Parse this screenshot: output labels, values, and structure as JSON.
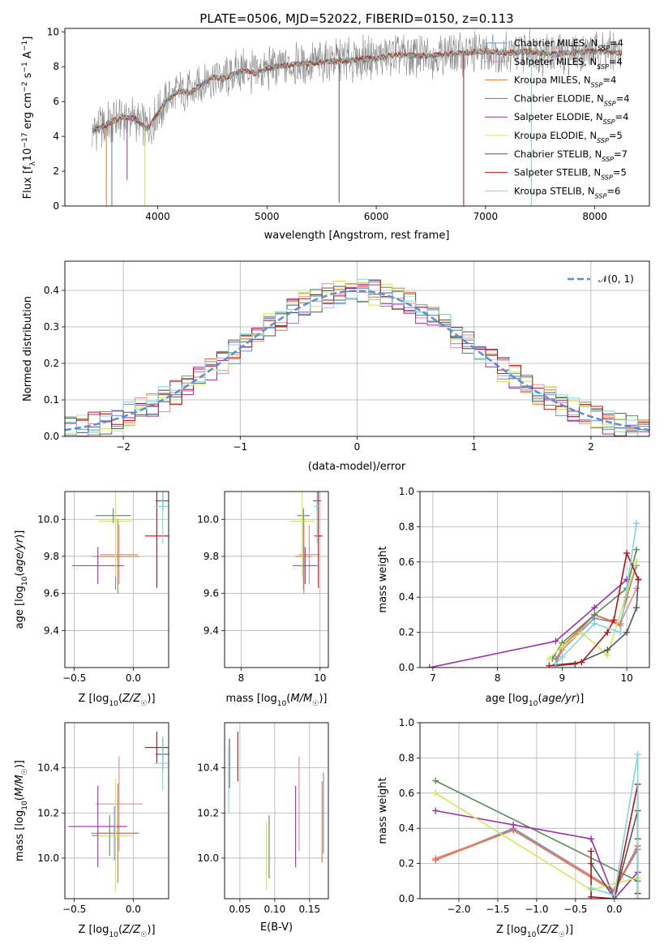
{
  "figure_title": "PLATE=0506, MJD=52022, FIBERID=0150, z=0.113",
  "colors": {
    "chabrier_miles": "#6a8fd8",
    "salpeter_miles": "#e8899b",
    "kroupa_miles": "#e2743a",
    "chabrier_elodie": "#5b8a5b",
    "salpeter_elodie": "#9b2fae",
    "kroupa_elodie": "#cfe85a",
    "chabrier_stelib": "#555555",
    "salpeter_stelib": "#b3141a",
    "kroupa_stelib": "#7fd6dc",
    "data": "#888888",
    "normal": "#5a8fd8",
    "grid": "#b0b0b0"
  },
  "chart_data": [
    {
      "type": "line",
      "title": "PLATE=0506, MJD=52022, FIBERID=0150, z=0.113",
      "xlabel": "wavelength [Angstrom, rest frame]",
      "ylabel": "Flux [f_λ 10^-17 erg cm^-2 s^-1 A^-1]",
      "xlim": [
        3150,
        8500
      ],
      "ylim": [
        0,
        10.2
      ],
      "xticks": [
        "4000",
        "5000",
        "6000",
        "7000",
        "8000"
      ],
      "yticks": [
        "0",
        "2",
        "4",
        "6",
        "8",
        "10"
      ],
      "legend": "upper right",
      "x": [
        3400,
        3500,
        3600,
        3700,
        3800,
        3900,
        4000,
        4100,
        4200,
        4300,
        4400,
        4500,
        4600,
        4700,
        4800,
        4900,
        5000,
        5200,
        5400,
        5600,
        5800,
        6000,
        6200,
        6400,
        6600,
        6800,
        7000,
        7200,
        7400,
        7600,
        7800,
        8000,
        8250
      ],
      "series_flux": [
        4.3,
        4.6,
        4.9,
        5.1,
        5.0,
        4.4,
        5.3,
        6.2,
        6.6,
        6.5,
        7.0,
        7.4,
        7.3,
        7.6,
        7.8,
        7.6,
        7.9,
        8.1,
        8.2,
        8.3,
        8.4,
        8.5,
        8.7,
        8.6,
        8.7,
        8.8,
        8.9,
        8.8,
        8.9,
        8.7,
        8.8,
        8.9,
        8.8
      ],
      "series": [
        {
          "name": "Chabrier MILES",
          "n_ssp": "4"
        },
        {
          "name": "Salpeter MILES",
          "n_ssp": "4"
        },
        {
          "name": "Kroupa MILES",
          "n_ssp": "4"
        },
        {
          "name": "Chabrier ELODIE",
          "n_ssp": "4"
        },
        {
          "name": "Salpeter ELODIE",
          "n_ssp": "4"
        },
        {
          "name": "Kroupa ELODIE",
          "n_ssp": "5"
        },
        {
          "name": "Chabrier STELIB",
          "n_ssp": "7"
        },
        {
          "name": "Salpeter STELIB",
          "n_ssp": "5"
        },
        {
          "name": "Kroupa STELIB",
          "n_ssp": "6"
        }
      ]
    },
    {
      "type": "histogram",
      "xlabel": "(data-model)/error",
      "ylabel": "Normed distribution",
      "xlim": [
        -2.5,
        2.5
      ],
      "ylim": [
        0,
        0.48
      ],
      "xticks": [
        "−2",
        "−1",
        "0",
        "1",
        "2"
      ],
      "yticks": [
        "0.0",
        "0.1",
        "0.2",
        "0.3",
        "0.4"
      ],
      "legend": "upper right",
      "normal_label": "𝒩(0, 1)",
      "bin_width": 0.1,
      "bin_start": -2.5
    },
    {
      "type": "scatter",
      "xlabel": "Z [log10(Z/Z☉)]",
      "ylabel": "age [log10(age/yr)]",
      "xlim": [
        -0.58,
        0.3
      ],
      "ylim": [
        9.2,
        10.15
      ],
      "xticks": [
        "−0.5",
        "0.0"
      ],
      "yticks": [
        "9.4",
        "9.6",
        "9.8",
        "10.0"
      ],
      "points": [
        {
          "x": -0.15,
          "y": 9.8,
          "xerr": 0.2,
          "yerr": 0.18
        },
        {
          "x": -0.12,
          "y": 9.81,
          "xerr": 0.16,
          "yerr": 0.16
        },
        {
          "x": -0.13,
          "y": 9.8,
          "xerr": 0.18,
          "yerr": 0.2
        },
        {
          "x": -0.17,
          "y": 10.02,
          "xerr": 0.15,
          "yerr": 0.04
        },
        {
          "x": -0.3,
          "y": 9.75,
          "xerr": 0.22,
          "yerr": 0.1
        },
        {
          "x": -0.15,
          "y": 9.99,
          "xerr": 0.14,
          "yerr": 0.3
        },
        {
          "x": 0.25,
          "y": 10.1,
          "xerr": 0.06,
          "yerr": 0.05
        },
        {
          "x": 0.2,
          "y": 9.91,
          "xerr": 0.1,
          "yerr": 0.28
        },
        {
          "x": 0.25,
          "y": 10.07,
          "xerr": 0.07,
          "yerr": 0.2
        }
      ]
    },
    {
      "type": "scatter",
      "xlabel": "mass [log10(M/M☉)]",
      "xlim": [
        8.2,
        10.7
      ],
      "ylim": [
        9.2,
        10.15
      ],
      "xticks": [
        "8",
        "10"
      ],
      "yticks": [
        "9.4",
        "9.6",
        "9.8",
        "10.0"
      ],
      "points": [
        {
          "x": 10.1,
          "y": 9.8,
          "xerr": 0.18,
          "yerr": 0.18
        },
        {
          "x": 10.24,
          "y": 9.81,
          "xerr": 0.25,
          "yerr": 0.16
        },
        {
          "x": 10.11,
          "y": 9.8,
          "xerr": 0.2,
          "yerr": 0.2
        },
        {
          "x": 10.1,
          "y": 10.02,
          "xerr": 0.15,
          "yerr": 0.04
        },
        {
          "x": 10.14,
          "y": 9.75,
          "xerr": 0.3,
          "yerr": 0.1
        },
        {
          "x": 10.07,
          "y": 9.99,
          "xerr": 0.3,
          "yerr": 0.3
        },
        {
          "x": 10.43,
          "y": 10.1,
          "xerr": 0.1,
          "yerr": 0.05
        },
        {
          "x": 10.46,
          "y": 9.91,
          "xerr": 0.1,
          "yerr": 0.28
        },
        {
          "x": 10.43,
          "y": 10.07,
          "xerr": 0.08,
          "yerr": 0.2
        }
      ]
    },
    {
      "type": "line",
      "xlabel": "age [log10(age/yr)]",
      "ylabel": "mass weight",
      "xlim": [
        6.8,
        10.35
      ],
      "ylim": [
        0,
        1
      ],
      "xticks": [
        "7",
        "8",
        "9",
        "10"
      ],
      "yticks": [
        "0.0",
        "0.2",
        "0.4",
        "0.6",
        "0.8",
        "1.0"
      ],
      "series": [
        {
          "x": [
            8.9,
            9.0,
            9.5,
            9.9,
            10.0,
            10.15
          ],
          "y": [
            0.05,
            0.1,
            0.28,
            0.25,
            0.4,
            0.58
          ]
        },
        {
          "x": [
            8.9,
            9.0,
            9.5,
            9.9,
            10.15
          ],
          "y": [
            0.02,
            0.1,
            0.3,
            0.25,
            0.45
          ]
        },
        {
          "x": [
            8.9,
            9.0,
            9.5,
            9.9,
            10.0,
            10.15
          ],
          "y": [
            0.02,
            0.12,
            0.3,
            0.24,
            0.4,
            0.6
          ]
        },
        {
          "x": [
            8.85,
            9.0,
            9.5,
            10.0,
            10.15
          ],
          "y": [
            0.05,
            0.14,
            0.3,
            0.45,
            0.67
          ]
        },
        {
          "x": [
            6.95,
            8.9,
            9.5,
            10.0
          ],
          "y": [
            0.0,
            0.15,
            0.34,
            0.5
          ]
        },
        {
          "x": [
            8.8,
            9.0,
            9.3,
            9.7,
            10.15
          ],
          "y": [
            0.05,
            0.12,
            0.2,
            0.07,
            0.6
          ]
        },
        {
          "x": [
            8.9,
            9.2,
            9.7,
            10.0,
            10.15,
            10.18
          ],
          "y": [
            0.01,
            0.02,
            0.1,
            0.2,
            0.34,
            0.5
          ]
        },
        {
          "x": [
            8.8,
            9.3,
            9.7,
            9.8,
            10.0,
            10.18
          ],
          "y": [
            0.01,
            0.03,
            0.2,
            0.27,
            0.65,
            0.5
          ]
        },
        {
          "x": [
            8.9,
            9.0,
            9.5,
            9.9,
            10.15
          ],
          "y": [
            0.02,
            0.06,
            0.25,
            0.2,
            0.82
          ]
        }
      ]
    },
    {
      "type": "scatter",
      "xlabel": "Z [log10(Z/Z☉)]",
      "ylabel": "mass [log10(M/M☉)]",
      "xlim": [
        -0.58,
        0.3
      ],
      "ylim": [
        9.82,
        10.6
      ],
      "xticks": [
        "−0.5",
        "0.0"
      ],
      "yticks": [
        "10.0",
        "10.2",
        "10.4"
      ],
      "points": [
        {
          "x": -0.16,
          "y": 10.11,
          "xerr": 0.2,
          "yerr": 0.12
        },
        {
          "x": -0.12,
          "y": 10.24,
          "xerr": 0.2,
          "yerr": 0.21
        },
        {
          "x": -0.13,
          "y": 10.11,
          "xerr": 0.18,
          "yerr": 0.22
        },
        {
          "x": -0.2,
          "y": 10.1,
          "xerr": 0.15,
          "yerr": 0.09
        },
        {
          "x": -0.3,
          "y": 10.14,
          "xerr": 0.25,
          "yerr": 0.18
        },
        {
          "x": -0.15,
          "y": 10.1,
          "xerr": 0.15,
          "yerr": 0.25
        },
        {
          "x": 0.25,
          "y": 10.46,
          "xerr": 0.06,
          "yerr": 0.07
        },
        {
          "x": 0.2,
          "y": 10.49,
          "xerr": 0.1,
          "yerr": 0.07
        },
        {
          "x": 0.25,
          "y": 10.42,
          "xerr": 0.07,
          "yerr": 0.12
        }
      ]
    },
    {
      "type": "scatter",
      "xlabel": "E(B-V)",
      "xlim": [
        0.028,
        0.177
      ],
      "ylim": [
        9.82,
        10.6
      ],
      "xticks": [
        "0.05",
        "0.10",
        "0.15"
      ],
      "yticks": [
        "10.0",
        "10.2",
        "10.4"
      ],
      "points": [
        {
          "x": 0.17,
          "y": 10.2,
          "yerr": 0.18
        },
        {
          "x": 0.135,
          "y": 10.24,
          "yerr": 0.21
        },
        {
          "x": 0.168,
          "y": 10.16,
          "yerr": 0.18
        },
        {
          "x": 0.092,
          "y": 10.05,
          "yerr": 0.14
        },
        {
          "x": 0.13,
          "y": 10.14,
          "yerr": 0.18
        },
        {
          "x": 0.088,
          "y": 10.01,
          "yerr": 0.15
        },
        {
          "x": 0.035,
          "y": 10.42,
          "yerr": 0.11
        },
        {
          "x": 0.047,
          "y": 10.45,
          "yerr": 0.11
        },
        {
          "x": 0.034,
          "y": 10.35,
          "yerr": 0.15
        }
      ]
    },
    {
      "type": "line",
      "xlabel": "Z [log10(Z/Z☉)]",
      "ylabel": "mass weight",
      "xlim": [
        -2.5,
        0.45
      ],
      "ylim": [
        0,
        1
      ],
      "xticks": [
        "−2.0",
        "−1.5",
        "−1.0",
        "−0.5",
        "0.0"
      ],
      "yticks": [
        "0.0",
        "0.2",
        "0.4",
        "0.6",
        "0.8",
        "1.0"
      ],
      "series": [
        {
          "x": [
            -2.3,
            -1.3,
            0.0,
            0.3,
            0.3
          ],
          "y": [
            0.22,
            0.4,
            0.05,
            0.28,
            0.0
          ]
        },
        {
          "x": [
            -2.3,
            -1.3,
            0.0,
            0.3,
            0.3
          ],
          "y": [
            0.23,
            0.39,
            0.05,
            0.3,
            0.0
          ]
        },
        {
          "x": [
            -2.3,
            -1.3,
            0.0,
            0.3,
            0.3
          ],
          "y": [
            0.22,
            0.39,
            0.04,
            0.3,
            0.0
          ]
        },
        {
          "x": [
            -2.3,
            0.3,
            0.3
          ],
          "y": [
            0.67,
            0.1,
            0.0
          ]
        },
        {
          "x": [
            -2.3,
            -1.3,
            -0.3,
            0.0,
            0.3
          ],
          "y": [
            0.5,
            0.42,
            0.34,
            0.0,
            0.15
          ]
        },
        {
          "x": [
            -2.3,
            -0.3,
            0.3,
            0.3
          ],
          "y": [
            0.6,
            0.05,
            0.12,
            0.0
          ]
        },
        {
          "x": [
            -0.3,
            0.0,
            0.3,
            0.3
          ],
          "y": [
            0.2,
            0.0,
            0.5,
            0.34
          ]
        },
        {
          "x": [
            -0.3,
            -0.3,
            0.0,
            0.3,
            0.3
          ],
          "y": [
            0.27,
            0.01,
            0.0,
            0.65,
            0.03
          ]
        },
        {
          "x": [
            -0.3,
            0.0,
            0.3,
            0.3
          ],
          "y": [
            0.06,
            0.02,
            0.82,
            0.0
          ]
        }
      ]
    }
  ]
}
